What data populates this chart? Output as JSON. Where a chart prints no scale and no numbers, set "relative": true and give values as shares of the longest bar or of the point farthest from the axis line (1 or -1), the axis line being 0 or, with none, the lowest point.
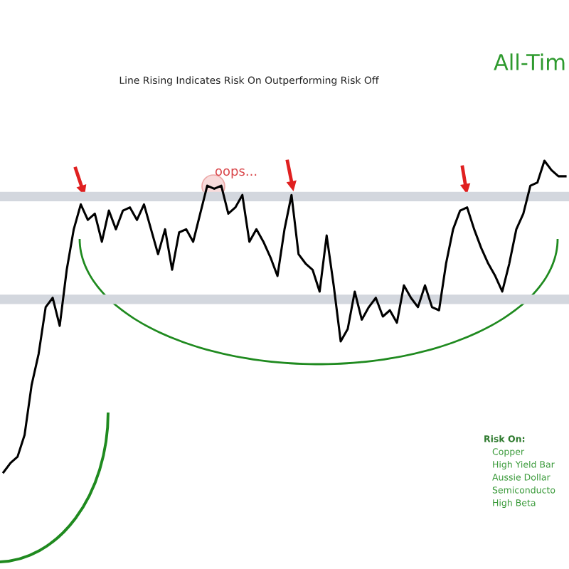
{
  "chart_data": {
    "type": "line",
    "relative": true,
    "title": "Line Rising Indicates Risk On Outperforming Risk Off",
    "categories": [
      null,
      null,
      null,
      null,
      null,
      null,
      null,
      null,
      null,
      null,
      null,
      null,
      null,
      null,
      null,
      null,
      null,
      null,
      null,
      null,
      null,
      null,
      null,
      null,
      null,
      null,
      null,
      null,
      null,
      null,
      null,
      null,
      null,
      null,
      null,
      null,
      null,
      null,
      null,
      null,
      null,
      null,
      null,
      null,
      null,
      null,
      null,
      null,
      null,
      null,
      null,
      null,
      null,
      null,
      null,
      null,
      null,
      null,
      null,
      null,
      null,
      null,
      null,
      null,
      null,
      null,
      null,
      null,
      null,
      null,
      null,
      null,
      null,
      null,
      null,
      null,
      null,
      null,
      null,
      null,
      null
    ],
    "series": [
      {
        "color": "#000000",
        "values": [
          0,
          0.03,
          0.05,
          0.12,
          0.28,
          0.38,
          0.53,
          0.56,
          0.47,
          0.65,
          0.78,
          0.86,
          0.81,
          0.83,
          0.74,
          0.84,
          0.78,
          0.84,
          0.85,
          0.81,
          0.86,
          0.78,
          0.7,
          0.78,
          0.65,
          0.77,
          0.78,
          0.74,
          0.83,
          0.92,
          0.91,
          0.92,
          0.83,
          0.85,
          0.89,
          0.74,
          0.78,
          0.74,
          0.69,
          0.63,
          0.78,
          0.89,
          0.7,
          0.67,
          0.65,
          0.58,
          0.76,
          0.6,
          0.42,
          0.46,
          0.58,
          0.49,
          0.53,
          0.56,
          0.5,
          0.52,
          0.48,
          0.6,
          0.56,
          0.53,
          0.6,
          0.53,
          0.52,
          0.67,
          0.78,
          0.84,
          0.85,
          0.78,
          0.72,
          0.67,
          0.63,
          0.58,
          0.67,
          0.78,
          0.83,
          0.92,
          0.93,
          1,
          0.97,
          0.95,
          0.95
        ]
      }
    ],
    "bands": [
      {
        "axis": "y",
        "from": 0.87,
        "to": 0.9,
        "color": "#d3d7de"
      },
      {
        "axis": "y",
        "from": 0.54,
        "to": 0.57,
        "color": "#d3d7de"
      }
    ],
    "annotations": [
      "All-Tim",
      "oops...",
      "Risk On:",
      "Copper",
      "High Yield Bar",
      "Aussie Dollar",
      "Semiconducto",
      "High Beta"
    ],
    "legend": false
  }
}
